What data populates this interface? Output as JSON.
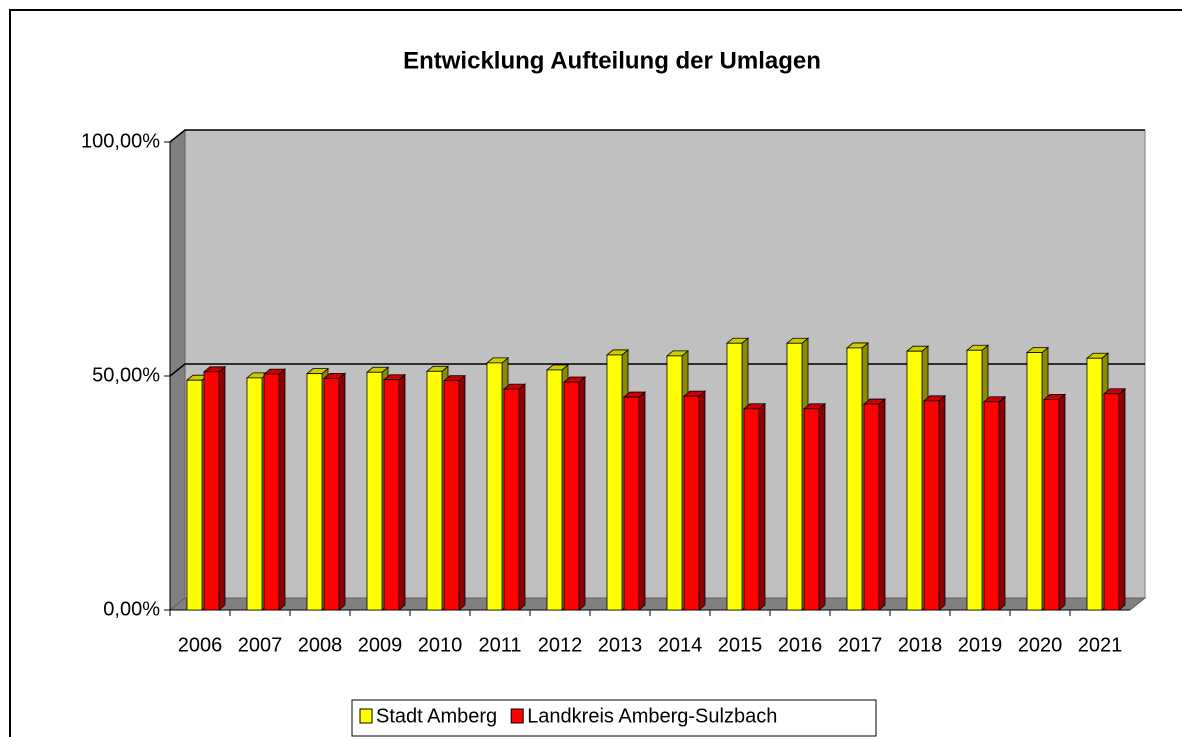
{
  "chart_data": {
    "type": "bar3d",
    "title": "Entwicklung Aufteilung der Umlagen",
    "categories": [
      "2006",
      "2007",
      "2008",
      "2009",
      "2010",
      "2011",
      "2012",
      "2013",
      "2014",
      "2015",
      "2016",
      "2017",
      "2018",
      "2019",
      "2020",
      "2021"
    ],
    "series": [
      {
        "name": "Stadt Amberg",
        "color": "#ffff00",
        "values": [
          49.1,
          49.6,
          50.5,
          50.8,
          51.0,
          52.8,
          51.3,
          54.5,
          54.3,
          57.0,
          57.0,
          56.0,
          55.3,
          55.5,
          55.0,
          53.8
        ]
      },
      {
        "name": "Landkreis Amberg-Sulzbach",
        "color": "#ff0000",
        "values": [
          50.9,
          50.4,
          49.5,
          49.2,
          49.0,
          47.2,
          48.7,
          45.5,
          45.7,
          43.0,
          43.0,
          44.0,
          44.7,
          44.5,
          45.0,
          46.2
        ]
      }
    ],
    "ylim": [
      0,
      100
    ],
    "yticks": [
      {
        "value": 0,
        "label": "0,00%"
      },
      {
        "value": 50,
        "label": "50,00%"
      },
      {
        "value": 100,
        "label": "100,00%"
      }
    ],
    "grid": true,
    "legend": "bottom"
  }
}
